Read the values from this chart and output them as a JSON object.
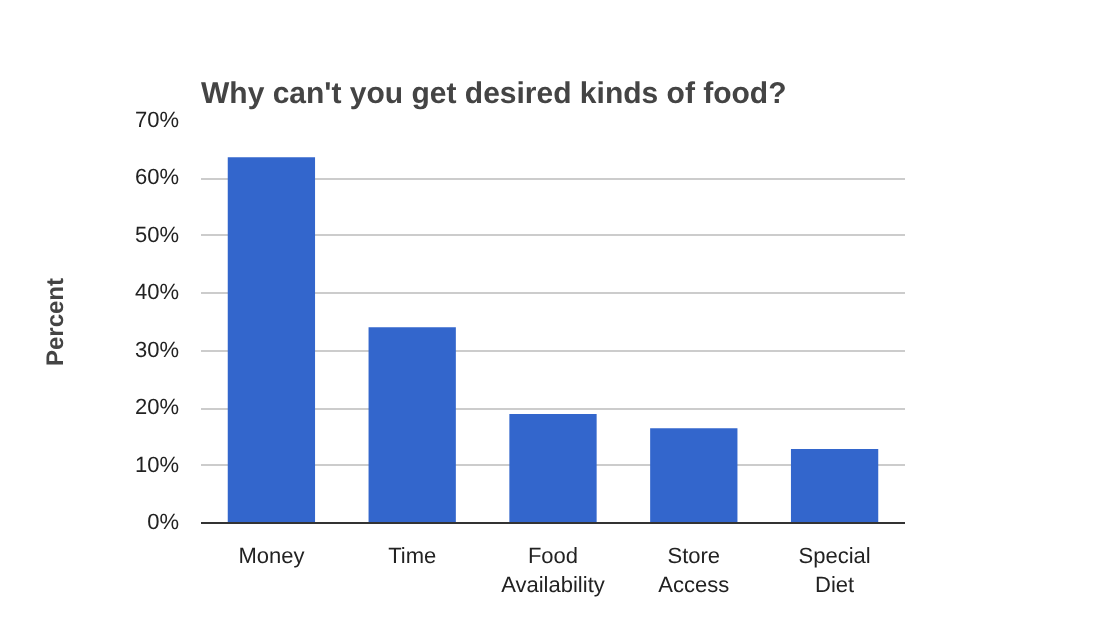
{
  "chart_data": {
    "type": "bar",
    "title": "Why can't you get desired kinds of food?",
    "ylabel": "Percent",
    "categories": [
      "Money",
      "Time",
      "Food\nAvailability",
      "Store\nAccess",
      "Special\nDiet"
    ],
    "values": [
      63.7,
      34.1,
      19.0,
      16.5,
      12.9
    ],
    "color": "#3366cc",
    "ylim": [
      0,
      70
    ],
    "yticks": [
      {
        "value": 0,
        "label": "0%"
      },
      {
        "value": 10,
        "label": "10%"
      },
      {
        "value": 20,
        "label": "20%"
      },
      {
        "value": 30,
        "label": "30%"
      },
      {
        "value": 40,
        "label": "40%"
      },
      {
        "value": 50,
        "label": "50%"
      },
      {
        "value": 60,
        "label": "60%"
      },
      {
        "value": 70,
        "label": "70%"
      }
    ],
    "grid": "y"
  }
}
